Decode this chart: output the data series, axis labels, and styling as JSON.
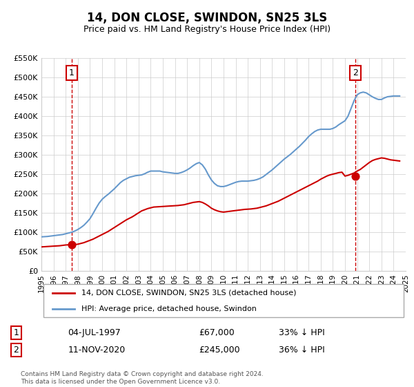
{
  "title": "14, DON CLOSE, SWINDON, SN25 3LS",
  "subtitle": "Price paid vs. HM Land Registry's House Price Index (HPI)",
  "title_fontsize": 13,
  "subtitle_fontsize": 10,
  "red_color": "#cc0000",
  "blue_color": "#6699cc",
  "bg_color": "#ffffff",
  "grid_color": "#cccccc",
  "legend1": "14, DON CLOSE, SWINDON, SN25 3LS (detached house)",
  "legend2": "HPI: Average price, detached house, Swindon",
  "annotation1_label": "1",
  "annotation1_date": "04-JUL-1997",
  "annotation1_price": "£67,000",
  "annotation1_hpi": "33% ↓ HPI",
  "annotation1_year": 1997.5,
  "annotation1_value": 67000,
  "annotation2_label": "2",
  "annotation2_date": "11-NOV-2020",
  "annotation2_price": "£245,000",
  "annotation2_hpi": "36% ↓ HPI",
  "annotation2_year": 2020.86,
  "annotation2_value": 245000,
  "footer1": "Contains HM Land Registry data © Crown copyright and database right 2024.",
  "footer2": "This data is licensed under the Open Government Licence v3.0.",
  "xmin": 1995,
  "xmax": 2025,
  "ymin": 0,
  "ymax": 550000,
  "yticks": [
    0,
    50000,
    100000,
    150000,
    200000,
    250000,
    300000,
    350000,
    400000,
    450000,
    500000,
    550000
  ],
  "ytick_labels": [
    "£0",
    "£50K",
    "£100K",
    "£150K",
    "£200K",
    "£250K",
    "£300K",
    "£350K",
    "£400K",
    "£450K",
    "£500K",
    "£550K"
  ],
  "xticks": [
    1995,
    1996,
    1997,
    1998,
    1999,
    2000,
    2001,
    2002,
    2003,
    2004,
    2005,
    2006,
    2007,
    2008,
    2009,
    2010,
    2011,
    2012,
    2013,
    2014,
    2015,
    2016,
    2017,
    2018,
    2019,
    2020,
    2021,
    2022,
    2023,
    2024,
    2025
  ],
  "red_x": [
    1995.0,
    1995.25,
    1995.5,
    1995.75,
    1996.0,
    1996.25,
    1996.5,
    1996.75,
    1997.0,
    1997.25,
    1997.5,
    1997.75,
    1998.0,
    1998.25,
    1998.5,
    1998.75,
    1999.0,
    1999.25,
    1999.5,
    1999.75,
    2000.0,
    2000.25,
    2000.5,
    2000.75,
    2001.0,
    2001.25,
    2001.5,
    2001.75,
    2002.0,
    2002.25,
    2002.5,
    2002.75,
    2003.0,
    2003.25,
    2003.5,
    2003.75,
    2004.0,
    2004.25,
    2004.5,
    2004.75,
    2005.0,
    2005.25,
    2005.5,
    2005.75,
    2006.0,
    2006.25,
    2006.5,
    2006.75,
    2007.0,
    2007.25,
    2007.5,
    2007.75,
    2008.0,
    2008.25,
    2008.5,
    2008.75,
    2009.0,
    2009.25,
    2009.5,
    2009.75,
    2010.0,
    2010.25,
    2010.5,
    2010.75,
    2011.0,
    2011.25,
    2011.5,
    2011.75,
    2012.0,
    2012.25,
    2012.5,
    2012.75,
    2013.0,
    2013.25,
    2013.5,
    2013.75,
    2014.0,
    2014.25,
    2014.5,
    2014.75,
    2015.0,
    2015.25,
    2015.5,
    2015.75,
    2016.0,
    2016.25,
    2016.5,
    2016.75,
    2017.0,
    2017.25,
    2017.5,
    2017.75,
    2018.0,
    2018.25,
    2018.5,
    2018.75,
    2019.0,
    2019.25,
    2019.5,
    2019.75,
    2020.0,
    2020.25,
    2020.5,
    2020.75,
    2021.0,
    2021.25,
    2021.5,
    2021.75,
    2022.0,
    2022.25,
    2022.5,
    2022.75,
    2023.0,
    2023.25,
    2023.5,
    2023.75,
    2024.0,
    2024.25,
    2024.5
  ],
  "red_y": [
    62000,
    62500,
    63000,
    63500,
    64000,
    64500,
    65000,
    66000,
    67000,
    67500,
    67000,
    68000,
    69000,
    71000,
    73000,
    76000,
    79000,
    82000,
    86000,
    90000,
    94000,
    98000,
    102000,
    107000,
    112000,
    117000,
    122000,
    127000,
    132000,
    136000,
    140000,
    145000,
    150000,
    155000,
    158000,
    161000,
    163000,
    165000,
    165500,
    166000,
    166500,
    167000,
    167500,
    168000,
    168500,
    169000,
    170000,
    171000,
    173000,
    175000,
    177000,
    178000,
    179000,
    177000,
    173000,
    168000,
    162000,
    158000,
    155000,
    153000,
    152000,
    153000,
    154000,
    155000,
    156000,
    157000,
    158000,
    159000,
    159500,
    160000,
    161000,
    162000,
    164000,
    166000,
    168000,
    171000,
    174000,
    177000,
    180000,
    184000,
    188000,
    192000,
    196000,
    200000,
    204000,
    208000,
    212000,
    216000,
    220000,
    224000,
    228000,
    232000,
    237000,
    241000,
    245000,
    248000,
    250000,
    252000,
    254000,
    255000,
    245000,
    247000,
    250000,
    253000,
    258000,
    262000,
    268000,
    274000,
    280000,
    285000,
    288000,
    290000,
    292000,
    291000,
    289000,
    287000,
    286000,
    285000,
    284000
  ],
  "blue_x": [
    1995.0,
    1995.25,
    1995.5,
    1995.75,
    1996.0,
    1996.25,
    1996.5,
    1996.75,
    1997.0,
    1997.25,
    1997.5,
    1997.75,
    1998.0,
    1998.25,
    1998.5,
    1998.75,
    1999.0,
    1999.25,
    1999.5,
    1999.75,
    2000.0,
    2000.25,
    2000.5,
    2000.75,
    2001.0,
    2001.25,
    2001.5,
    2001.75,
    2002.0,
    2002.25,
    2002.5,
    2002.75,
    2003.0,
    2003.25,
    2003.5,
    2003.75,
    2004.0,
    2004.25,
    2004.5,
    2004.75,
    2005.0,
    2005.25,
    2005.5,
    2005.75,
    2006.0,
    2006.25,
    2006.5,
    2006.75,
    2007.0,
    2007.25,
    2007.5,
    2007.75,
    2008.0,
    2008.25,
    2008.5,
    2008.75,
    2009.0,
    2009.25,
    2009.5,
    2009.75,
    2010.0,
    2010.25,
    2010.5,
    2010.75,
    2011.0,
    2011.25,
    2011.5,
    2011.75,
    2012.0,
    2012.25,
    2012.5,
    2012.75,
    2013.0,
    2013.25,
    2013.5,
    2013.75,
    2014.0,
    2014.25,
    2014.5,
    2014.75,
    2015.0,
    2015.25,
    2015.5,
    2015.75,
    2016.0,
    2016.25,
    2016.5,
    2016.75,
    2017.0,
    2017.25,
    2017.5,
    2017.75,
    2018.0,
    2018.25,
    2018.5,
    2018.75,
    2019.0,
    2019.25,
    2019.5,
    2019.75,
    2020.0,
    2020.25,
    2020.5,
    2020.75,
    2021.0,
    2021.25,
    2021.5,
    2021.75,
    2022.0,
    2022.25,
    2022.5,
    2022.75,
    2023.0,
    2023.25,
    2023.5,
    2023.75,
    2024.0,
    2024.25,
    2024.5
  ],
  "blue_y": [
    88000,
    88500,
    89000,
    90000,
    91000,
    92000,
    93000,
    94000,
    96000,
    98000,
    100000,
    103000,
    107000,
    112000,
    118000,
    126000,
    135000,
    148000,
    162000,
    175000,
    185000,
    192000,
    198000,
    205000,
    212000,
    220000,
    228000,
    234000,
    238000,
    242000,
    244000,
    246000,
    247000,
    248000,
    251000,
    255000,
    258000,
    258000,
    258000,
    258000,
    256000,
    255000,
    254000,
    253000,
    252000,
    252000,
    254000,
    257000,
    261000,
    266000,
    272000,
    277000,
    280000,
    274000,
    263000,
    248000,
    235000,
    226000,
    220000,
    218000,
    218000,
    220000,
    223000,
    226000,
    229000,
    231000,
    232000,
    232000,
    232000,
    233000,
    234000,
    236000,
    239000,
    243000,
    249000,
    255000,
    261000,
    268000,
    275000,
    282000,
    289000,
    295000,
    301000,
    308000,
    315000,
    322000,
    330000,
    338000,
    347000,
    354000,
    360000,
    364000,
    366000,
    366000,
    366000,
    366000,
    368000,
    372000,
    378000,
    383000,
    388000,
    400000,
    420000,
    440000,
    455000,
    460000,
    462000,
    460000,
    455000,
    450000,
    446000,
    443000,
    443000,
    447000,
    450000,
    451000,
    452000,
    452000,
    452000
  ]
}
